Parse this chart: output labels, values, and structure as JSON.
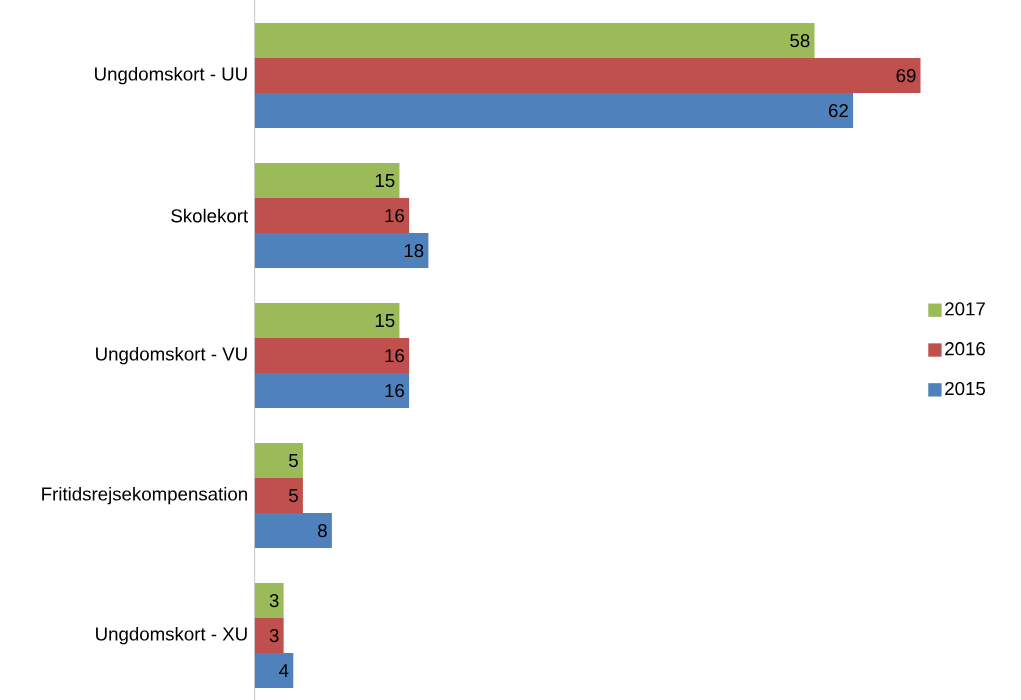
{
  "chart_data": {
    "type": "bar",
    "orientation": "horizontal",
    "categories": [
      "Ungdomskort - UU",
      "Skolekort",
      "Ungdomskort - VU",
      "Fritidsrejsekompensation",
      "Ungdomskort - XU"
    ],
    "series": [
      {
        "name": "2017",
        "color": "#9bbb59",
        "values": [
          58,
          15,
          15,
          5,
          3
        ]
      },
      {
        "name": "2016",
        "color": "#c0504d",
        "values": [
          69,
          16,
          16,
          5,
          3
        ]
      },
      {
        "name": "2015",
        "color": "#4f81bd",
        "values": [
          62,
          18,
          16,
          8,
          4
        ]
      }
    ],
    "data_labels": true,
    "legend": "right"
  }
}
